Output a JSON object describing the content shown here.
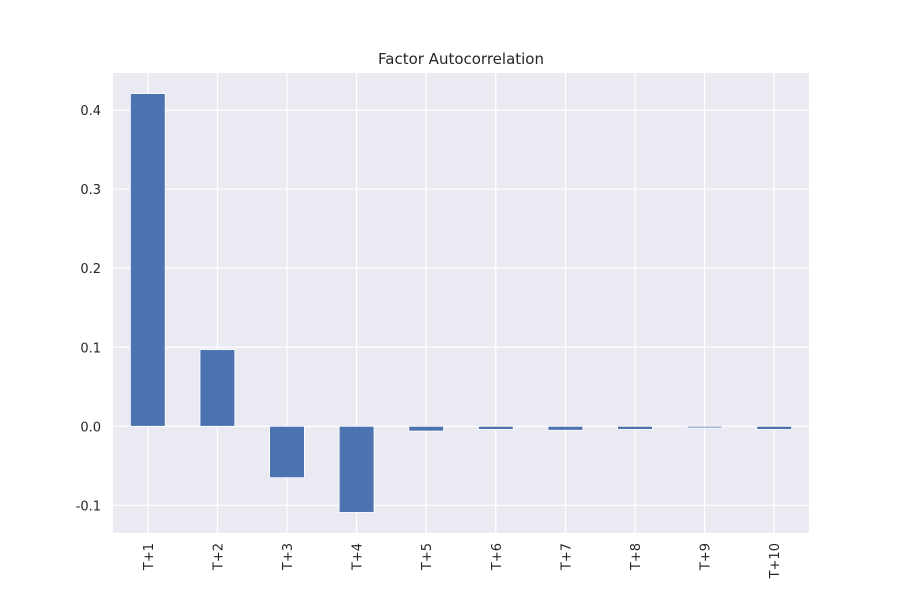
{
  "chart_data": {
    "type": "bar",
    "title": "Factor Autocorrelation",
    "xlabel": "",
    "ylabel": "",
    "categories": [
      "T+1",
      "T+2",
      "T+3",
      "T+4",
      "T+5",
      "T+6",
      "T+7",
      "T+8",
      "T+9",
      "T+10"
    ],
    "values": [
      0.421,
      0.097,
      -0.065,
      -0.109,
      -0.006,
      -0.004,
      -0.005,
      -0.004,
      -0.002,
      -0.004
    ],
    "ylim": [
      -0.135,
      0.447
    ],
    "yticks": [
      -0.1,
      0.0,
      0.1,
      0.2,
      0.3,
      0.4
    ],
    "ytick_labels": [
      "-0.1",
      "0.0",
      "0.1",
      "0.2",
      "0.3",
      "0.4"
    ],
    "grid": true,
    "legend": "none",
    "colors": {
      "bar": "#4c72b0",
      "plot_background": "#eaeaf2",
      "grid": "#ffffff",
      "text": "#262626"
    }
  }
}
